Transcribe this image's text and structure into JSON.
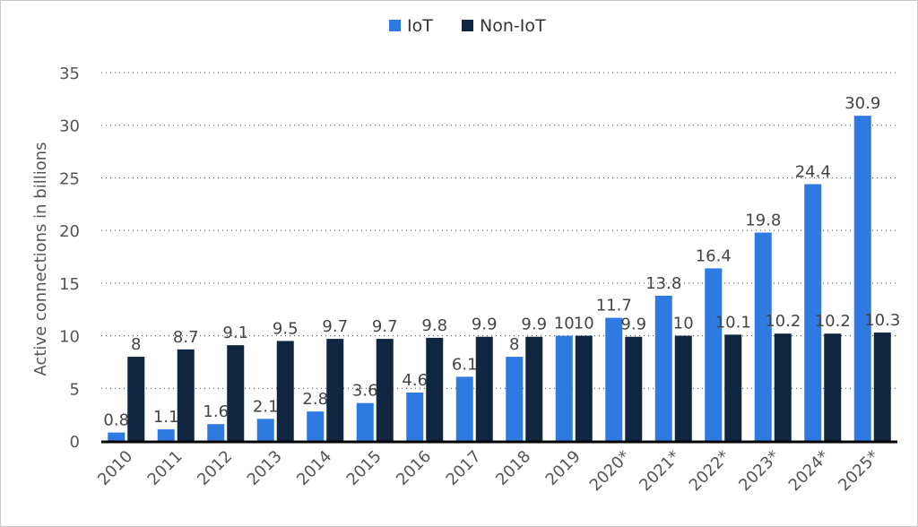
{
  "chart_data": {
    "type": "bar",
    "title": "",
    "xlabel": "",
    "ylabel": "Active connections in billions",
    "ylim": [
      0,
      35
    ],
    "yticks": [
      0,
      5,
      10,
      15,
      20,
      25,
      30,
      35
    ],
    "grid": true,
    "legend_position": "top-center",
    "categories": [
      "2010",
      "2011",
      "2012",
      "2013",
      "2014",
      "2015",
      "2016",
      "2017",
      "2018",
      "2019",
      "2020*",
      "2021*",
      "2022*",
      "2023*",
      "2024*",
      "2025*"
    ],
    "series": [
      {
        "name": "IoT",
        "color": "#2f7ae0",
        "values": [
          0.8,
          1.1,
          1.6,
          2.1,
          2.8,
          3.6,
          4.6,
          6.1,
          8,
          10,
          11.7,
          13.8,
          16.4,
          19.8,
          24.4,
          30.9
        ]
      },
      {
        "name": "Non-IoT",
        "color": "#0f2540",
        "values": [
          8,
          8.7,
          9.1,
          9.5,
          9.7,
          9.7,
          9.8,
          9.9,
          9.9,
          10,
          9.9,
          10,
          10.1,
          10.2,
          10.2,
          10.3
        ]
      }
    ]
  }
}
